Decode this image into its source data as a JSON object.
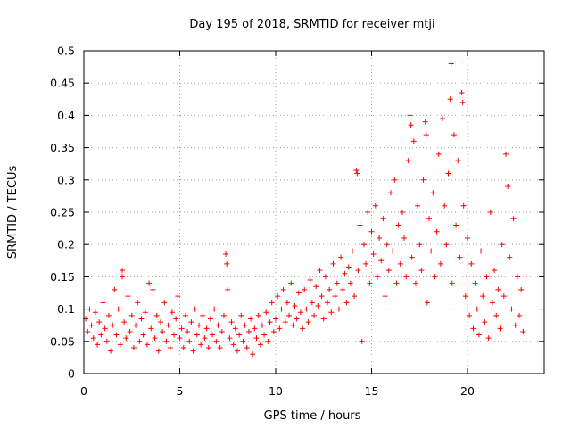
{
  "chart_data": {
    "type": "scatter",
    "title": "Day 195 of 2018, SRMTID for receiver mtji",
    "xlabel": "GPS time / hours",
    "ylabel": "SRMTID / TECUs",
    "xlim": [
      0,
      24
    ],
    "ylim": [
      0,
      0.5
    ],
    "xticks": [
      0,
      5,
      10,
      15,
      20
    ],
    "yticks": [
      0,
      0.05,
      0.1,
      0.15,
      0.2,
      0.25,
      0.3,
      0.35,
      0.4,
      0.45,
      0.5
    ],
    "x_tick_labels": [
      "0",
      "5",
      "10",
      "15",
      "20"
    ],
    "y_tick_labels": [
      "0",
      "0.05",
      "0.1",
      "0.15",
      "0.2",
      "0.25",
      "0.3",
      "0.35",
      "0.4",
      "0.45",
      "0.5"
    ],
    "grid": true,
    "marker": "+",
    "color": "#ff0000",
    "series": [
      {
        "name": "SRMTID",
        "points": [
          [
            0.1,
            0.085
          ],
          [
            0.2,
            0.065
          ],
          [
            0.3,
            0.1
          ],
          [
            0.4,
            0.075
          ],
          [
            0.5,
            0.055
          ],
          [
            0.6,
            0.095
          ],
          [
            0.7,
            0.045
          ],
          [
            0.8,
            0.08
          ],
          [
            0.9,
            0.06
          ],
          [
            1.0,
            0.11
          ],
          [
            1.1,
            0.07
          ],
          [
            1.2,
            0.05
          ],
          [
            1.3,
            0.09
          ],
          [
            1.4,
            0.035
          ],
          [
            1.5,
            0.075
          ],
          [
            1.6,
            0.13
          ],
          [
            1.7,
            0.06
          ],
          [
            1.8,
            0.1
          ],
          [
            1.9,
            0.045
          ],
          [
            2.0,
            0.16
          ],
          [
            2.0,
            0.15
          ],
          [
            2.1,
            0.08
          ],
          [
            2.2,
            0.055
          ],
          [
            2.3,
            0.12
          ],
          [
            2.4,
            0.065
          ],
          [
            2.5,
            0.09
          ],
          [
            2.6,
            0.04
          ],
          [
            2.7,
            0.075
          ],
          [
            2.8,
            0.11
          ],
          [
            2.9,
            0.05
          ],
          [
            3.0,
            0.085
          ],
          [
            3.1,
            0.06
          ],
          [
            3.2,
            0.095
          ],
          [
            3.3,
            0.045
          ],
          [
            3.4,
            0.14
          ],
          [
            3.5,
            0.07
          ],
          [
            3.6,
            0.13
          ],
          [
            3.7,
            0.055
          ],
          [
            3.8,
            0.09
          ],
          [
            3.9,
            0.035
          ],
          [
            4.0,
            0.08
          ],
          [
            4.1,
            0.065
          ],
          [
            4.2,
            0.11
          ],
          [
            4.3,
            0.05
          ],
          [
            4.4,
            0.075
          ],
          [
            4.5,
            0.04
          ],
          [
            4.6,
            0.095
          ],
          [
            4.7,
            0.06
          ],
          [
            4.8,
            0.085
          ],
          [
            4.9,
            0.12
          ],
          [
            5.0,
            0.055
          ],
          [
            5.1,
            0.07
          ],
          [
            5.2,
            0.04
          ],
          [
            5.3,
            0.09
          ],
          [
            5.4,
            0.065
          ],
          [
            5.5,
            0.05
          ],
          [
            5.6,
            0.08
          ],
          [
            5.7,
            0.035
          ],
          [
            5.8,
            0.1
          ],
          [
            5.9,
            0.06
          ],
          [
            6.0,
            0.075
          ],
          [
            6.1,
            0.045
          ],
          [
            6.2,
            0.09
          ],
          [
            6.3,
            0.055
          ],
          [
            6.4,
            0.07
          ],
          [
            6.5,
            0.04
          ],
          [
            6.6,
            0.085
          ],
          [
            6.7,
            0.06
          ],
          [
            6.8,
            0.1
          ],
          [
            6.9,
            0.05
          ],
          [
            7.0,
            0.075
          ],
          [
            7.1,
            0.04
          ],
          [
            7.2,
            0.065
          ],
          [
            7.3,
            0.09
          ],
          [
            7.4,
            0.185
          ],
          [
            7.45,
            0.17
          ],
          [
            7.5,
            0.13
          ],
          [
            7.6,
            0.055
          ],
          [
            7.7,
            0.08
          ],
          [
            7.8,
            0.045
          ],
          [
            7.9,
            0.07
          ],
          [
            8.0,
            0.035
          ],
          [
            8.1,
            0.06
          ],
          [
            8.2,
            0.09
          ],
          [
            8.3,
            0.05
          ],
          [
            8.4,
            0.075
          ],
          [
            8.5,
            0.04
          ],
          [
            8.6,
            0.065
          ],
          [
            8.7,
            0.085
          ],
          [
            8.8,
            0.03
          ],
          [
            8.9,
            0.07
          ],
          [
            9.0,
            0.055
          ],
          [
            9.1,
            0.09
          ],
          [
            9.2,
            0.045
          ],
          [
            9.3,
            0.075
          ],
          [
            9.4,
            0.06
          ],
          [
            9.5,
            0.095
          ],
          [
            9.6,
            0.05
          ],
          [
            9.7,
            0.08
          ],
          [
            9.8,
            0.11
          ],
          [
            9.9,
            0.065
          ],
          [
            10.0,
            0.085
          ],
          [
            10.1,
            0.12
          ],
          [
            10.2,
            0.07
          ],
          [
            10.3,
            0.1
          ],
          [
            10.4,
            0.13
          ],
          [
            10.5,
            0.08
          ],
          [
            10.6,
            0.11
          ],
          [
            10.7,
            0.09
          ],
          [
            10.8,
            0.14
          ],
          [
            10.9,
            0.075
          ],
          [
            11.0,
            0.105
          ],
          [
            11.1,
            0.085
          ],
          [
            11.2,
            0.125
          ],
          [
            11.3,
            0.095
          ],
          [
            11.4,
            0.07
          ],
          [
            11.5,
            0.13
          ],
          [
            11.6,
            0.1
          ],
          [
            11.7,
            0.08
          ],
          [
            11.8,
            0.145
          ],
          [
            11.9,
            0.11
          ],
          [
            12.0,
            0.09
          ],
          [
            12.1,
            0.135
          ],
          [
            12.2,
            0.105
          ],
          [
            12.3,
            0.16
          ],
          [
            12.4,
            0.12
          ],
          [
            12.5,
            0.085
          ],
          [
            12.6,
            0.15
          ],
          [
            12.7,
            0.11
          ],
          [
            12.8,
            0.13
          ],
          [
            12.9,
            0.095
          ],
          [
            13.0,
            0.17
          ],
          [
            13.1,
            0.12
          ],
          [
            13.2,
            0.14
          ],
          [
            13.3,
            0.1
          ],
          [
            13.4,
            0.18
          ],
          [
            13.5,
            0.13
          ],
          [
            13.6,
            0.155
          ],
          [
            13.7,
            0.11
          ],
          [
            13.8,
            0.165
          ],
          [
            13.9,
            0.14
          ],
          [
            14.0,
            0.19
          ],
          [
            14.1,
            0.12
          ],
          [
            14.2,
            0.315
          ],
          [
            14.25,
            0.31
          ],
          [
            14.3,
            0.16
          ],
          [
            14.4,
            0.23
          ],
          [
            14.5,
            0.05
          ],
          [
            14.6,
            0.2
          ],
          [
            14.7,
            0.17
          ],
          [
            14.8,
            0.25
          ],
          [
            14.9,
            0.14
          ],
          [
            15.0,
            0.22
          ],
          [
            15.1,
            0.185
          ],
          [
            15.2,
            0.26
          ],
          [
            15.3,
            0.15
          ],
          [
            15.4,
            0.21
          ],
          [
            15.5,
            0.175
          ],
          [
            15.6,
            0.24
          ],
          [
            15.7,
            0.12
          ],
          [
            15.8,
            0.2
          ],
          [
            15.9,
            0.16
          ],
          [
            16.0,
            0.28
          ],
          [
            16.1,
            0.19
          ],
          [
            16.2,
            0.3
          ],
          [
            16.3,
            0.14
          ],
          [
            16.4,
            0.23
          ],
          [
            16.5,
            0.17
          ],
          [
            16.6,
            0.25
          ],
          [
            16.7,
            0.21
          ],
          [
            16.8,
            0.15
          ],
          [
            16.9,
            0.33
          ],
          [
            17.0,
            0.4
          ],
          [
            17.05,
            0.385
          ],
          [
            17.1,
            0.18
          ],
          [
            17.2,
            0.36
          ],
          [
            17.3,
            0.14
          ],
          [
            17.4,
            0.26
          ],
          [
            17.5,
            0.2
          ],
          [
            17.6,
            0.16
          ],
          [
            17.7,
            0.3
          ],
          [
            17.8,
            0.39
          ],
          [
            17.85,
            0.37
          ],
          [
            17.9,
            0.11
          ],
          [
            18.0,
            0.24
          ],
          [
            18.1,
            0.19
          ],
          [
            18.2,
            0.28
          ],
          [
            18.3,
            0.15
          ],
          [
            18.4,
            0.22
          ],
          [
            18.5,
            0.34
          ],
          [
            18.6,
            0.17
          ],
          [
            18.7,
            0.395
          ],
          [
            18.8,
            0.26
          ],
          [
            18.9,
            0.2
          ],
          [
            19.0,
            0.31
          ],
          [
            19.1,
            0.425
          ],
          [
            19.15,
            0.48
          ],
          [
            19.2,
            0.14
          ],
          [
            19.3,
            0.37
          ],
          [
            19.4,
            0.23
          ],
          [
            19.5,
            0.33
          ],
          [
            19.6,
            0.18
          ],
          [
            19.7,
            0.435
          ],
          [
            19.75,
            0.42
          ],
          [
            19.8,
            0.26
          ],
          [
            19.9,
            0.12
          ],
          [
            20.0,
            0.21
          ],
          [
            20.1,
            0.09
          ],
          [
            20.2,
            0.17
          ],
          [
            20.3,
            0.07
          ],
          [
            20.4,
            0.14
          ],
          [
            20.5,
            0.1
          ],
          [
            20.6,
            0.06
          ],
          [
            20.7,
            0.19
          ],
          [
            20.8,
            0.12
          ],
          [
            20.9,
            0.08
          ],
          [
            21.0,
            0.15
          ],
          [
            21.1,
            0.055
          ],
          [
            21.2,
            0.25
          ],
          [
            21.3,
            0.11
          ],
          [
            21.4,
            0.16
          ],
          [
            21.5,
            0.09
          ],
          [
            21.6,
            0.13
          ],
          [
            21.7,
            0.07
          ],
          [
            21.8,
            0.2
          ],
          [
            21.9,
            0.12
          ],
          [
            22.0,
            0.34
          ],
          [
            22.1,
            0.29
          ],
          [
            22.2,
            0.18
          ],
          [
            22.3,
            0.1
          ],
          [
            22.4,
            0.24
          ],
          [
            22.5,
            0.075
          ],
          [
            22.6,
            0.15
          ],
          [
            22.7,
            0.09
          ],
          [
            22.8,
            0.13
          ],
          [
            22.9,
            0.065
          ]
        ]
      }
    ]
  }
}
